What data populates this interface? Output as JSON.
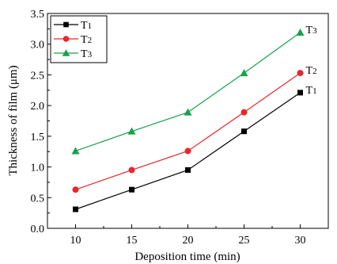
{
  "chart_data": {
    "type": "line",
    "title": "",
    "xlabel": "Deposition time (min)",
    "ylabel": "Thickness of film (μm)",
    "x": [
      10,
      15,
      20,
      25,
      30
    ],
    "xlim": [
      7.5,
      32.5
    ],
    "ylim": [
      0.0,
      3.5
    ],
    "xticks": [
      10,
      15,
      20,
      25,
      30
    ],
    "yticks": [
      "0.0",
      "0.5",
      "1.0",
      "1.5",
      "2.0",
      "2.5",
      "3.0",
      "3.5"
    ],
    "grid": false,
    "legend_position": "top-left",
    "series": [
      {
        "name": "T1",
        "label_main": "T",
        "label_sub": "1",
        "color": "#000000",
        "marker": "square",
        "values": [
          0.31,
          0.63,
          0.95,
          1.58,
          2.21
        ]
      },
      {
        "name": "T2",
        "label_main": "T",
        "label_sub": "2",
        "color": "#e8262b",
        "marker": "circle",
        "values": [
          0.63,
          0.95,
          1.26,
          1.89,
          2.53
        ]
      },
      {
        "name": "T3",
        "label_main": "T",
        "label_sub": "3",
        "color": "#17a14a",
        "marker": "triangle",
        "values": [
          1.26,
          1.58,
          1.89,
          2.53,
          3.19
        ]
      }
    ]
  }
}
